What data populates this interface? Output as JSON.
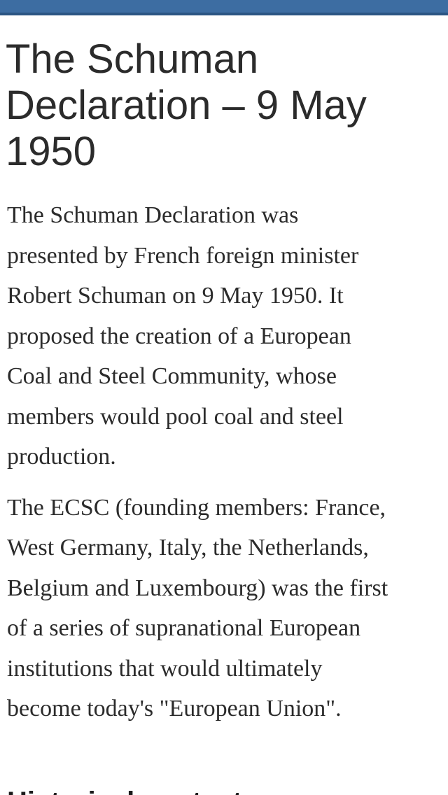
{
  "header_bar": {
    "color": "#3d6da2"
  },
  "article": {
    "title": "The Schuman Declaration – 9 May 1950",
    "paragraphs": [
      {
        "lines": [
          "The Schuman Declaration was",
          "presented by French foreign minister",
          "Robert Schuman on 9 May 1950. It",
          "proposed the creation of a European",
          "Coal and Steel Community, whose",
          "members would pool coal and steel",
          "production."
        ]
      },
      {
        "lines": [
          "The ECSC (founding members: France,",
          "West Germany, Italy, the Netherlands,",
          "Belgium and Luxembourg) was the first",
          "of a series of supranational European",
          "institutions that would ultimately",
          "become today's \"European Union\"."
        ]
      }
    ],
    "next_heading_partial": "Historical context"
  }
}
